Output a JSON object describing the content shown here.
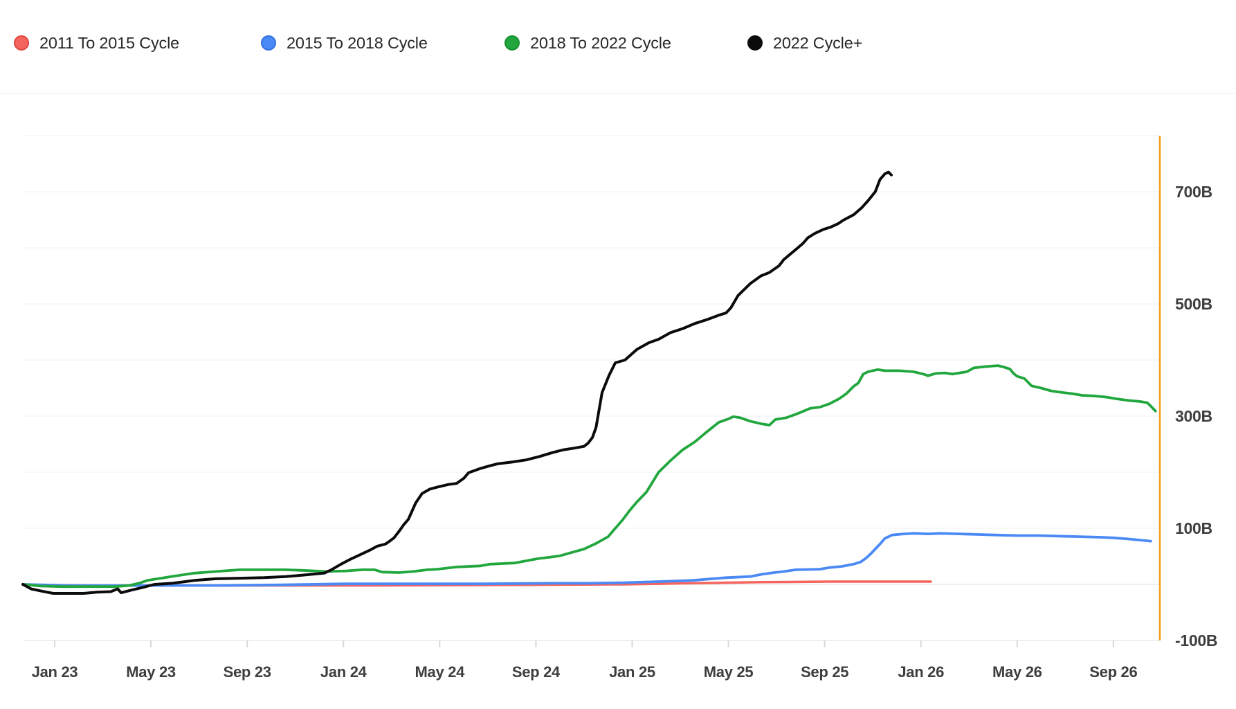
{
  "legend": {
    "items": [
      {
        "label": "2011 To 2015 Cycle",
        "color": "#F4655F",
        "ring": "#E04640"
      },
      {
        "label": "2015 To 2018 Cycle",
        "color": "#4B8AF5",
        "ring": "#3270E3"
      },
      {
        "label": "2018 To 2022 Cycle",
        "color": "#22A63E",
        "ring": "#17912F"
      },
      {
        "label": "2022 Cycle+",
        "color": "#0B0B0B",
        "ring": "#0B0B0B"
      }
    ]
  },
  "chart_data": {
    "type": "line",
    "x_unit": "months since Jan 2023",
    "y_unit": "billions USD",
    "ylim": [
      -100,
      800
    ],
    "grid_step": 100,
    "legend_position": "top-left",
    "y_axis_side": "right",
    "grid": true,
    "x_ticks": [
      {
        "t": 0,
        "label": "Jan 23"
      },
      {
        "t": 4,
        "label": "May 23"
      },
      {
        "t": 8,
        "label": "Sep 23"
      },
      {
        "t": 12,
        "label": "Jan 24"
      },
      {
        "t": 16,
        "label": "May 24"
      },
      {
        "t": 20,
        "label": "Sep 24"
      },
      {
        "t": 24,
        "label": "Jan 25"
      },
      {
        "t": 28,
        "label": "May 25"
      },
      {
        "t": 32,
        "label": "Sep 25"
      },
      {
        "t": 36,
        "label": "Jan 26"
      },
      {
        "t": 40,
        "label": "May 26"
      },
      {
        "t": 44,
        "label": "Sep 26"
      }
    ],
    "y_ticks": [
      {
        "v": 700,
        "label": "700B"
      },
      {
        "v": 500,
        "label": "500B"
      },
      {
        "v": 300,
        "label": "300B"
      },
      {
        "v": 100,
        "label": "100B"
      },
      {
        "v": -100,
        "label": "-100B"
      }
    ],
    "marker_line": {
      "t": 45.93,
      "color": "#F89B1C"
    },
    "series": [
      {
        "name": "2011 To 2015 Cycle",
        "color": "#F4655F",
        "width": 3.5,
        "points": [
          [
            -1.32,
            -1
          ],
          [
            2,
            -2
          ],
          [
            7.8,
            -2
          ],
          [
            13.5,
            -2
          ],
          [
            19.3,
            -1
          ],
          [
            23.6,
            0
          ],
          [
            26.5,
            2
          ],
          [
            29.4,
            4
          ],
          [
            32.2,
            5
          ],
          [
            35.1,
            5
          ],
          [
            36.41,
            5
          ]
        ]
      },
      {
        "name": "2015 To 2018 Cycle",
        "color": "#4B8AF5",
        "width": 3.8,
        "points": [
          [
            -1.32,
            0
          ],
          [
            0.6,
            -2
          ],
          [
            3.5,
            -2
          ],
          [
            6.4,
            -2
          ],
          [
            9.2,
            -1
          ],
          [
            12.1,
            1
          ],
          [
            15,
            1
          ],
          [
            17.9,
            1
          ],
          [
            20.7,
            2
          ],
          [
            22.2,
            2
          ],
          [
            23.6,
            3
          ],
          [
            25.1,
            5
          ],
          [
            26.5,
            7
          ],
          [
            27.9,
            12
          ],
          [
            28.9,
            14
          ],
          [
            29.4,
            18
          ],
          [
            29.9,
            21
          ],
          [
            30.3,
            23
          ],
          [
            30.8,
            26
          ],
          [
            31.8,
            27
          ],
          [
            32.2,
            30
          ],
          [
            32.7,
            32
          ],
          [
            33.2,
            36
          ],
          [
            33.5,
            40
          ],
          [
            33.7,
            46
          ],
          [
            33.9,
            54
          ],
          [
            34.1,
            63
          ],
          [
            34.3,
            72
          ],
          [
            34.5,
            82
          ],
          [
            34.8,
            88
          ],
          [
            35.3,
            90
          ],
          [
            35.7,
            91
          ],
          [
            36.3,
            90
          ],
          [
            36.8,
            91
          ],
          [
            37.6,
            90
          ],
          [
            38.3,
            89
          ],
          [
            39.1,
            88
          ],
          [
            40,
            87
          ],
          [
            40.9,
            87
          ],
          [
            41.7,
            86
          ],
          [
            42.6,
            85
          ],
          [
            43.5,
            84
          ],
          [
            44,
            83
          ],
          [
            44.6,
            81
          ],
          [
            45.1,
            79
          ],
          [
            45.55,
            77
          ]
        ]
      },
      {
        "name": "2018 To 2022 Cycle",
        "color": "#22A63E",
        "width": 3.8,
        "points": [
          [
            -1.32,
            0
          ],
          [
            -0.6,
            -3
          ],
          [
            0.3,
            -4
          ],
          [
            1.5,
            -4
          ],
          [
            2.5,
            -4
          ],
          [
            3.1,
            -2
          ],
          [
            3.5,
            2
          ],
          [
            3.85,
            7
          ],
          [
            4.85,
            14
          ],
          [
            5.8,
            20
          ],
          [
            6.7,
            23
          ],
          [
            7.7,
            26
          ],
          [
            8.7,
            26
          ],
          [
            9.6,
            26
          ],
          [
            10.3,
            25
          ],
          [
            11.3,
            23
          ],
          [
            12.1,
            24
          ],
          [
            12.8,
            26
          ],
          [
            13.3,
            26
          ],
          [
            13.6,
            22
          ],
          [
            14.3,
            21
          ],
          [
            14.9,
            23
          ],
          [
            15.5,
            26
          ],
          [
            15.9,
            27
          ],
          [
            16.7,
            31
          ],
          [
            17.7,
            33
          ],
          [
            18.1,
            36
          ],
          [
            18.6,
            37
          ],
          [
            19.1,
            38
          ],
          [
            19.6,
            42
          ],
          [
            20.1,
            46
          ],
          [
            20.5,
            48
          ],
          [
            21,
            51
          ],
          [
            21.5,
            57
          ],
          [
            22,
            63
          ],
          [
            22.5,
            73
          ],
          [
            23,
            85
          ],
          [
            23.3,
            100
          ],
          [
            23.6,
            115
          ],
          [
            23.9,
            132
          ],
          [
            24.2,
            147
          ],
          [
            24.6,
            165
          ],
          [
            25.1,
            200
          ],
          [
            25.6,
            221
          ],
          [
            26.1,
            240
          ],
          [
            26.6,
            254
          ],
          [
            27.1,
            272
          ],
          [
            27.6,
            289
          ],
          [
            28,
            295
          ],
          [
            28.2,
            299
          ],
          [
            28.5,
            297
          ],
          [
            28.9,
            291
          ],
          [
            29.4,
            286
          ],
          [
            29.7,
            284
          ],
          [
            29.95,
            294
          ],
          [
            30.4,
            297
          ],
          [
            30.9,
            305
          ],
          [
            31.4,
            314
          ],
          [
            31.8,
            316
          ],
          [
            32.2,
            322
          ],
          [
            32.6,
            331
          ],
          [
            32.9,
            340
          ],
          [
            33.2,
            353
          ],
          [
            33.4,
            359
          ],
          [
            33.6,
            375
          ],
          [
            33.8,
            379
          ],
          [
            34.2,
            383
          ],
          [
            34.5,
            381
          ],
          [
            35.1,
            381
          ],
          [
            35.7,
            379
          ],
          [
            36.1,
            375
          ],
          [
            36.3,
            372
          ],
          [
            36.6,
            376
          ],
          [
            37,
            377
          ],
          [
            37.3,
            375
          ],
          [
            37.6,
            377
          ],
          [
            37.9,
            379
          ],
          [
            38.2,
            386
          ],
          [
            38.6,
            388
          ],
          [
            38.9,
            389
          ],
          [
            39.2,
            390
          ],
          [
            39.4,
            388
          ],
          [
            39.7,
            384
          ],
          [
            39.85,
            376
          ],
          [
            40,
            371
          ],
          [
            40.3,
            367
          ],
          [
            40.6,
            354
          ],
          [
            41,
            350
          ],
          [
            41.4,
            345
          ],
          [
            41.9,
            342
          ],
          [
            42.3,
            340
          ],
          [
            42.7,
            337
          ],
          [
            43.2,
            336
          ],
          [
            43.7,
            334
          ],
          [
            44.1,
            331
          ],
          [
            44.6,
            328
          ],
          [
            45.1,
            326
          ],
          [
            45.4,
            324
          ],
          [
            45.55,
            318
          ],
          [
            45.75,
            309
          ]
        ]
      },
      {
        "name": "2022 Cycle+",
        "color": "#0B0B0B",
        "width": 4,
        "points": [
          [
            -1.32,
            0
          ],
          [
            -0.98,
            -8
          ],
          [
            -0.55,
            -12
          ],
          [
            -0.06,
            -16
          ],
          [
            0.6,
            -16
          ],
          [
            1.2,
            -16
          ],
          [
            1.75,
            -14
          ],
          [
            2.33,
            -13
          ],
          [
            2.62,
            -8
          ],
          [
            2.76,
            -15
          ],
          [
            3.3,
            -9
          ],
          [
            3.6,
            -6
          ],
          [
            4.15,
            0
          ],
          [
            4.9,
            2
          ],
          [
            5.8,
            7
          ],
          [
            6.7,
            10
          ],
          [
            7.7,
            11
          ],
          [
            8.7,
            12
          ],
          [
            9.6,
            14
          ],
          [
            10.2,
            16
          ],
          [
            10.7,
            18
          ],
          [
            11.2,
            20
          ],
          [
            11.5,
            26
          ],
          [
            11.9,
            36
          ],
          [
            12.3,
            45
          ],
          [
            12.7,
            53
          ],
          [
            13.1,
            61
          ],
          [
            13.4,
            68
          ],
          [
            13.75,
            72
          ],
          [
            13.92,
            77
          ],
          [
            14.1,
            83
          ],
          [
            14.32,
            95
          ],
          [
            14.5,
            106
          ],
          [
            14.7,
            116
          ],
          [
            15,
            145
          ],
          [
            15.27,
            162
          ],
          [
            15.6,
            170
          ],
          [
            15.95,
            174
          ],
          [
            16.35,
            178
          ],
          [
            16.7,
            180
          ],
          [
            17,
            189
          ],
          [
            17.2,
            199
          ],
          [
            17.65,
            206
          ],
          [
            18.05,
            211
          ],
          [
            18.4,
            215
          ],
          [
            19,
            218
          ],
          [
            19.6,
            222
          ],
          [
            20.15,
            228
          ],
          [
            20.7,
            235
          ],
          [
            21.15,
            240
          ],
          [
            21.6,
            243
          ],
          [
            22,
            246
          ],
          [
            22.17,
            252
          ],
          [
            22.35,
            262
          ],
          [
            22.5,
            280
          ],
          [
            22.62,
            310
          ],
          [
            22.75,
            342
          ],
          [
            23.03,
            372
          ],
          [
            23.3,
            395
          ],
          [
            23.7,
            400
          ],
          [
            24.2,
            419
          ],
          [
            24.7,
            431
          ],
          [
            25.1,
            437
          ],
          [
            25.6,
            449
          ],
          [
            26.1,
            456
          ],
          [
            26.6,
            465
          ],
          [
            27.1,
            472
          ],
          [
            27.6,
            480
          ],
          [
            27.9,
            484
          ],
          [
            28.1,
            493
          ],
          [
            28.4,
            515
          ],
          [
            28.9,
            536
          ],
          [
            29.35,
            550
          ],
          [
            29.7,
            556
          ],
          [
            30.1,
            568
          ],
          [
            30.3,
            579
          ],
          [
            30.6,
            590
          ],
          [
            30.8,
            597
          ],
          [
            31.1,
            608
          ],
          [
            31.3,
            618
          ],
          [
            31.6,
            626
          ],
          [
            31.95,
            633
          ],
          [
            32.25,
            637
          ],
          [
            32.55,
            643
          ],
          [
            32.8,
            650
          ],
          [
            33.2,
            659
          ],
          [
            33.55,
            672
          ],
          [
            33.8,
            684
          ],
          [
            34.1,
            700
          ],
          [
            34.3,
            722
          ],
          [
            34.5,
            732
          ],
          [
            34.65,
            735
          ],
          [
            34.77,
            730
          ]
        ]
      }
    ]
  }
}
